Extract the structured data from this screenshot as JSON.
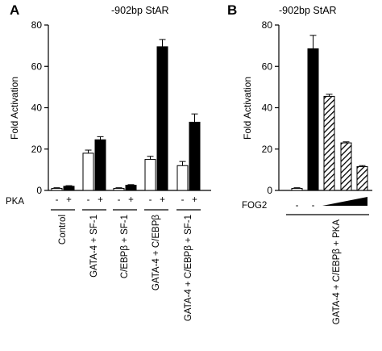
{
  "chart_data": [
    {
      "type": "bar",
      "panel_letter": "A",
      "title": "-902bp StAR",
      "ylabel": "Fold Activation",
      "ylim": [
        0,
        80
      ],
      "yticks": [
        0,
        20,
        40,
        60,
        80
      ],
      "pka_label": "PKA",
      "pka_signs": [
        "-",
        "+"
      ],
      "categories": [
        "Control",
        "GATA-4 + SF-1",
        "C/EBPβ + SF-1",
        "GATA-4 + C/EBPβ",
        "GATA-4 + C/EBPβ + SF-1"
      ],
      "series": [
        {
          "pka": "-",
          "fill": "white",
          "values": [
            1,
            18,
            1,
            15,
            12
          ],
          "errors": [
            0.3,
            1.5,
            0.3,
            1.5,
            2
          ]
        },
        {
          "pka": "+",
          "fill": "black",
          "values": [
            2,
            24.5,
            2.5,
            69.5,
            33
          ],
          "errors": [
            0.3,
            1.5,
            0.3,
            3.5,
            4
          ]
        }
      ],
      "colors": {
        "filled": "#000000",
        "open": "#ffffff"
      }
    },
    {
      "type": "bar",
      "panel_letter": "B",
      "title": "-902bp StAR",
      "ylabel": "Fold Activation",
      "ylim": [
        0,
        80
      ],
      "yticks": [
        0,
        20,
        40,
        60,
        80
      ],
      "fog2_label": "FOG2",
      "fog2_signs": [
        "-",
        "-"
      ],
      "group_label": "GATA-4 + C/EBPβ + PKA",
      "bars": [
        {
          "fill": "white",
          "value": 1,
          "error": 0.3
        },
        {
          "fill": "black",
          "value": 68.5,
          "error": 6.5
        },
        {
          "fill": "hatched",
          "value": 45.5,
          "error": 1
        },
        {
          "fill": "hatched",
          "value": 23,
          "error": 0.5
        },
        {
          "fill": "hatched",
          "value": 11.5,
          "error": 0.5
        }
      ]
    }
  ]
}
